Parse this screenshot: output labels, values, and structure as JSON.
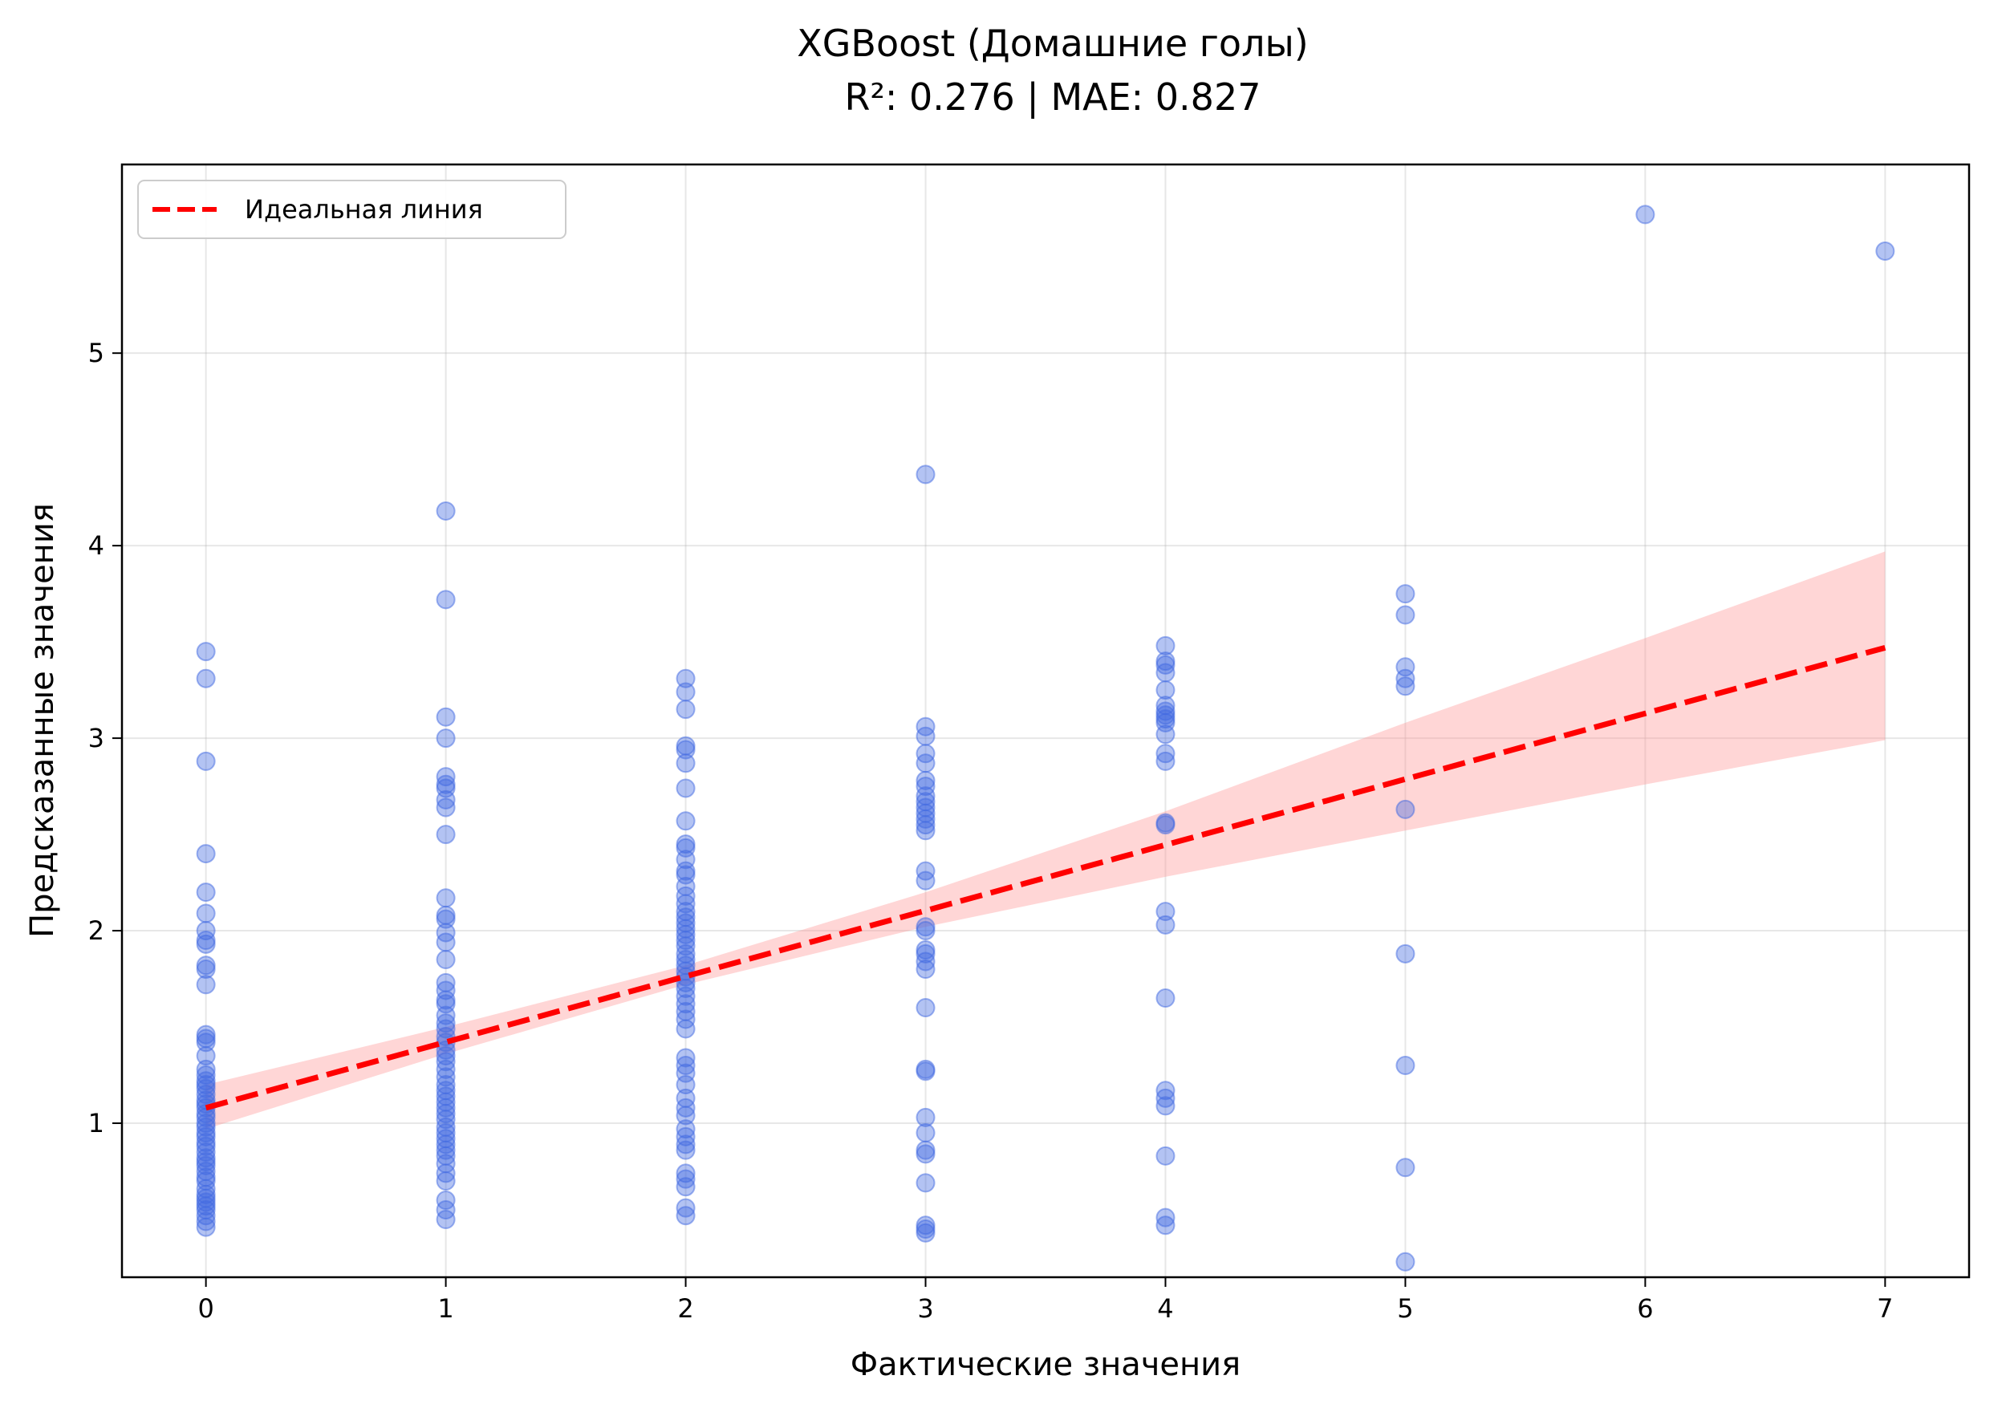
{
  "chart_data": {
    "type": "scatter",
    "title": "XGBoost (Домашние голы)",
    "subtitle": "R²: 0.276 | MAE: 0.827",
    "xlabel": "Фактические значения",
    "ylabel": "Предсказанные значения",
    "xlim": [
      -0.35,
      7.35
    ],
    "ylim": [
      0.2,
      5.98
    ],
    "xticks": [
      0,
      1,
      2,
      3,
      4,
      5,
      6,
      7
    ],
    "yticks": [
      1,
      2,
      3,
      4,
      5
    ],
    "grid": true,
    "legend_position": "top-left",
    "colors": {
      "points": "#4169e1",
      "line": "#ff0000",
      "band": "#ff9999"
    },
    "trend_line": {
      "name": "Идеальная линия",
      "x": [
        0,
        7
      ],
      "y": [
        1.08,
        3.47
      ],
      "band_lower": [
        0.97,
        2.99
      ],
      "band_upper": [
        1.2,
        3.97
      ],
      "band_x": [
        0,
        1,
        2,
        3,
        4,
        5,
        6,
        7
      ],
      "band_lo": [
        0.97,
        1.36,
        1.72,
        2.02,
        2.28,
        2.52,
        2.76,
        2.99
      ],
      "band_hi": [
        1.2,
        1.5,
        1.82,
        2.2,
        2.62,
        3.08,
        3.52,
        3.97
      ]
    },
    "points": [
      {
        "x": 0,
        "y": [
          3.45,
          3.31,
          2.88,
          2.4,
          2.2,
          2.09,
          2.0,
          1.95,
          1.93,
          1.82,
          1.8,
          1.72,
          1.46,
          1.44,
          1.42,
          1.35,
          1.28,
          1.25,
          1.22,
          1.2,
          1.18,
          1.15,
          1.12,
          1.1,
          1.08,
          1.05,
          1.03,
          1.0,
          0.98,
          0.95,
          0.93,
          0.9,
          0.88,
          0.85,
          0.82,
          0.8,
          0.78,
          0.75,
          0.72,
          0.7,
          0.66,
          0.63,
          0.61,
          0.59,
          0.57,
          0.55,
          0.52,
          0.49,
          0.46
        ]
      },
      {
        "x": 1,
        "y": [
          4.18,
          3.72,
          3.11,
          3.0,
          2.8,
          2.76,
          2.74,
          2.68,
          2.64,
          2.5,
          2.17,
          2.08,
          2.06,
          1.99,
          1.94,
          1.85,
          1.73,
          1.69,
          1.64,
          1.62,
          1.56,
          1.52,
          1.49,
          1.45,
          1.42,
          1.38,
          1.35,
          1.32,
          1.28,
          1.24,
          1.2,
          1.17,
          1.14,
          1.11,
          1.08,
          1.05,
          1.02,
          0.98,
          0.95,
          0.92,
          0.89,
          0.86,
          0.83,
          0.79,
          0.74,
          0.7,
          0.6,
          0.55,
          0.5
        ]
      },
      {
        "x": 2,
        "y": [
          3.31,
          3.24,
          3.15,
          2.96,
          2.94,
          2.87,
          2.74,
          2.57,
          2.45,
          2.43,
          2.37,
          2.31,
          2.29,
          2.23,
          2.18,
          2.14,
          2.1,
          2.07,
          2.04,
          2.01,
          1.98,
          1.95,
          1.92,
          1.88,
          1.85,
          1.82,
          1.79,
          1.76,
          1.73,
          1.7,
          1.66,
          1.62,
          1.58,
          1.54,
          1.49,
          1.34,
          1.3,
          1.26,
          1.2,
          1.13,
          1.08,
          1.04,
          0.97,
          0.93,
          0.89,
          0.86,
          0.74,
          0.71,
          0.67,
          0.56,
          0.52
        ]
      },
      {
        "x": 3,
        "y": [
          4.37,
          3.06,
          3.01,
          2.92,
          2.87,
          2.78,
          2.75,
          2.7,
          2.67,
          2.64,
          2.61,
          2.58,
          2.55,
          2.52,
          2.31,
          2.26,
          2.02,
          2.0,
          1.9,
          1.88,
          1.84,
          1.8,
          1.6,
          1.28,
          1.27,
          1.03,
          0.95,
          0.86,
          0.84,
          0.69,
          0.47,
          0.45,
          0.43
        ]
      },
      {
        "x": 4,
        "y": [
          3.48,
          3.4,
          3.38,
          3.34,
          3.25,
          3.17,
          3.14,
          3.12,
          3.1,
          3.08,
          3.02,
          2.92,
          2.88,
          2.56,
          2.55,
          2.1,
          2.03,
          1.65,
          1.17,
          1.13,
          1.09,
          0.83,
          0.51,
          0.47
        ]
      },
      {
        "x": 5,
        "y": [
          3.75,
          3.64,
          3.37,
          3.31,
          3.27,
          2.63,
          1.88,
          1.3,
          0.77,
          0.28
        ]
      },
      {
        "x": 6,
        "y": [
          5.72
        ]
      },
      {
        "x": 7,
        "y": [
          5.53
        ]
      }
    ]
  }
}
